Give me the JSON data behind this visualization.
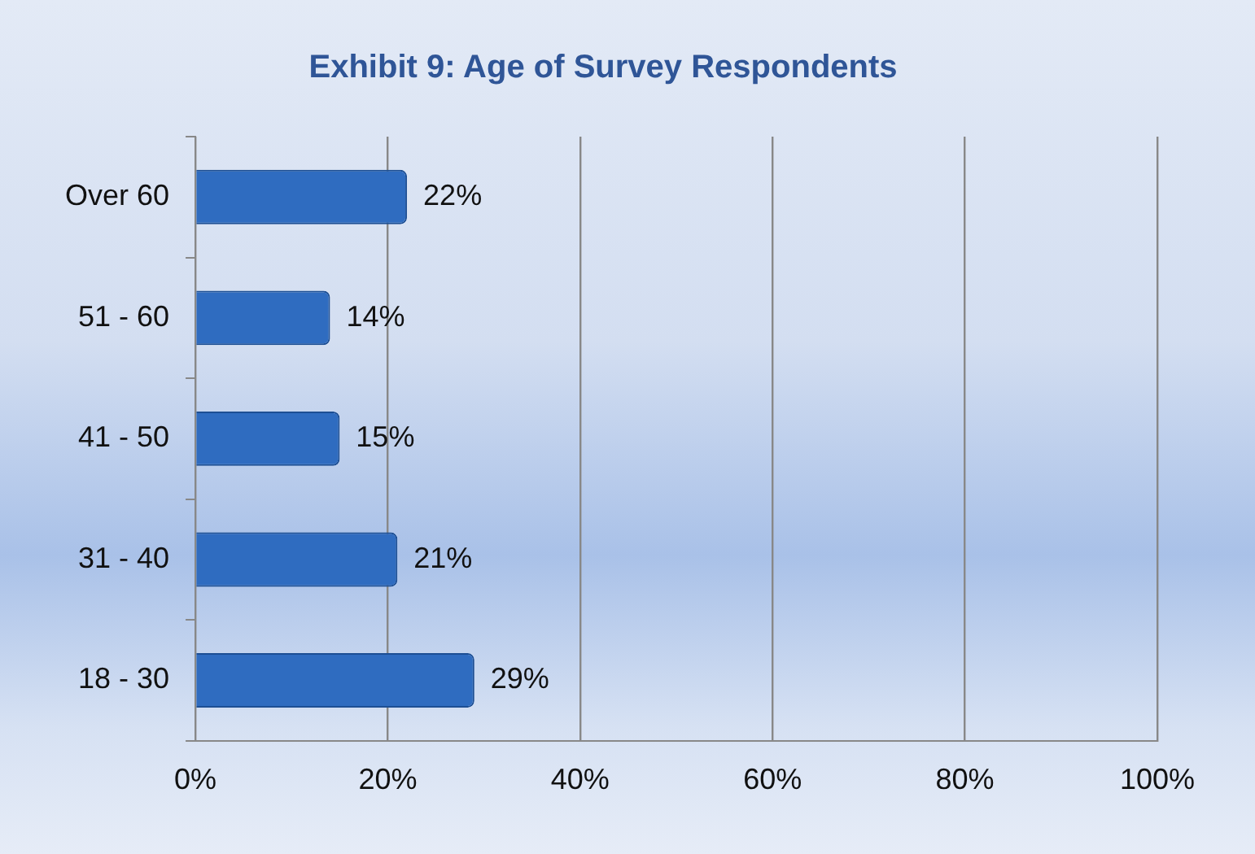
{
  "chart_data": {
    "type": "bar",
    "orientation": "horizontal",
    "title": "Exhibit 9: Age of Survey Respondents",
    "categories": [
      "Over 60",
      "51 - 60",
      "41 - 50",
      "31 - 40",
      "18 - 30"
    ],
    "values": [
      22,
      14,
      15,
      21,
      29
    ],
    "color": "#2f6cc0",
    "value_labels": [
      "22%",
      "14%",
      "15%",
      "21%",
      "29%"
    ],
    "xlim": [
      0,
      100
    ],
    "xticks": [
      {
        "value": 0,
        "label": "0%"
      },
      {
        "value": 20,
        "label": "20%"
      },
      {
        "value": 40,
        "label": "40%"
      },
      {
        "value": 60,
        "label": "60%"
      },
      {
        "value": 80,
        "label": "80%"
      },
      {
        "value": 100,
        "label": "100%"
      }
    ],
    "grid": "x",
    "legend": false
  }
}
